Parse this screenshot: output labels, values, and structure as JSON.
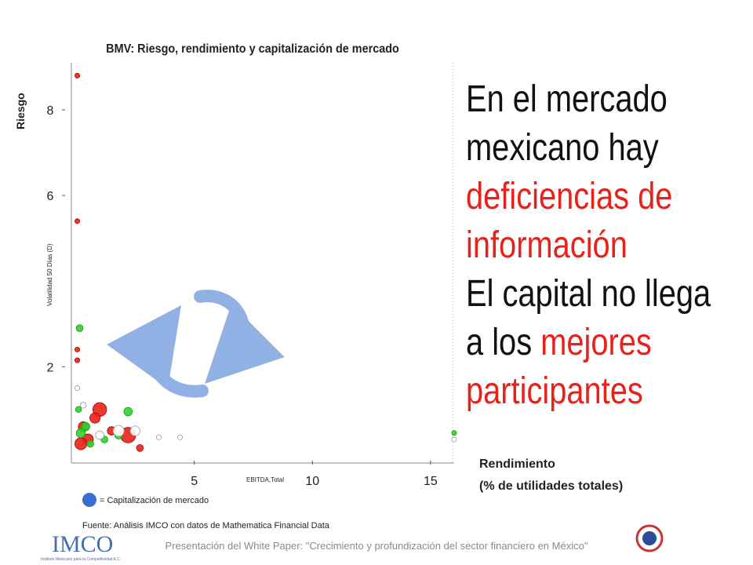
{
  "chart_data": {
    "type": "scatter",
    "title": "BMV: Riesgo, rendimiento y capitalización de mercado",
    "y_label": "Riesgo",
    "x_label": [
      "Rendimiento",
      "(% de utilidades totales)"
    ],
    "inner_y_label": "Volatilidad 50 Días (D)",
    "inner_x_label": "EBITDA,Total",
    "xlim": [
      -0.2,
      16
    ],
    "ylim": [
      -0.25,
      9.1
    ],
    "xticks": [
      5,
      10,
      15
    ],
    "yticks": [
      2,
      6,
      8
    ],
    "series": [
      {
        "color": "#e8221b",
        "stroke": "#b00000",
        "x": [
          0.05,
          0.05,
          0.05,
          0.05,
          1,
          2.2,
          0.3,
          0.5,
          2.7,
          1.5,
          0.8,
          0.2
        ],
        "values": [
          8.8,
          5.4,
          2.4,
          2.15,
          1.0,
          0.4,
          0.6,
          0.3,
          0.1,
          0.5,
          0.8,
          0.2
        ],
        "sizes": [
          2,
          2,
          2,
          2,
          16,
          20,
          8,
          10,
          4,
          6,
          9,
          12
        ]
      },
      {
        "color": "#2ed42e",
        "stroke": "#139913",
        "x": [
          0.15,
          2.2,
          0.1,
          0.4,
          16,
          1.8,
          0.6,
          0.2,
          1.2
        ],
        "values": [
          2.9,
          0.95,
          1.0,
          0.6,
          0.45,
          0.4,
          0.2,
          0.45,
          0.3
        ],
        "sizes": [
          4,
          6,
          3,
          6,
          2,
          5,
          4,
          7,
          4
        ]
      },
      {
        "color": "#ffffff",
        "stroke": "#999999",
        "x": [
          0.05,
          3.5,
          4.4,
          16,
          1.8,
          0.3,
          2.5,
          1.0
        ],
        "values": [
          1.5,
          0.35,
          0.35,
          0.3,
          0.5,
          1.1,
          0.5,
          0.4
        ],
        "sizes": [
          2,
          2,
          2,
          2,
          10,
          3,
          8,
          6
        ]
      }
    ],
    "legend": "= Capitalización de mercado",
    "legend_color": "#3a6fd0",
    "source": "Fuente: Análisis IMCO con datos de Mathematica Financial Data"
  },
  "headline": [
    [
      {
        "text": "En el mercado",
        "highlight": false
      }
    ],
    [
      {
        "text": "mexicano hay",
        "highlight": false
      }
    ],
    [
      {
        "text": "deficiencias de",
        "highlight": true
      }
    ],
    [
      {
        "text": "información",
        "highlight": true
      }
    ],
    [
      {
        "text": "El capital no llega",
        "highlight": false
      }
    ],
    [
      {
        "text": "a los ",
        "highlight": false
      },
      {
        "text": "mejores",
        "highlight": true
      }
    ],
    [
      {
        "text": "participantes",
        "highlight": true
      }
    ]
  ],
  "footer": "Presentación del White Paper: \"Crecimiento y profundización del sector financiero en México\"",
  "logo": {
    "name": "IMCO",
    "subtitle": "Instituto Mexicano para la Competitividad A.C."
  }
}
